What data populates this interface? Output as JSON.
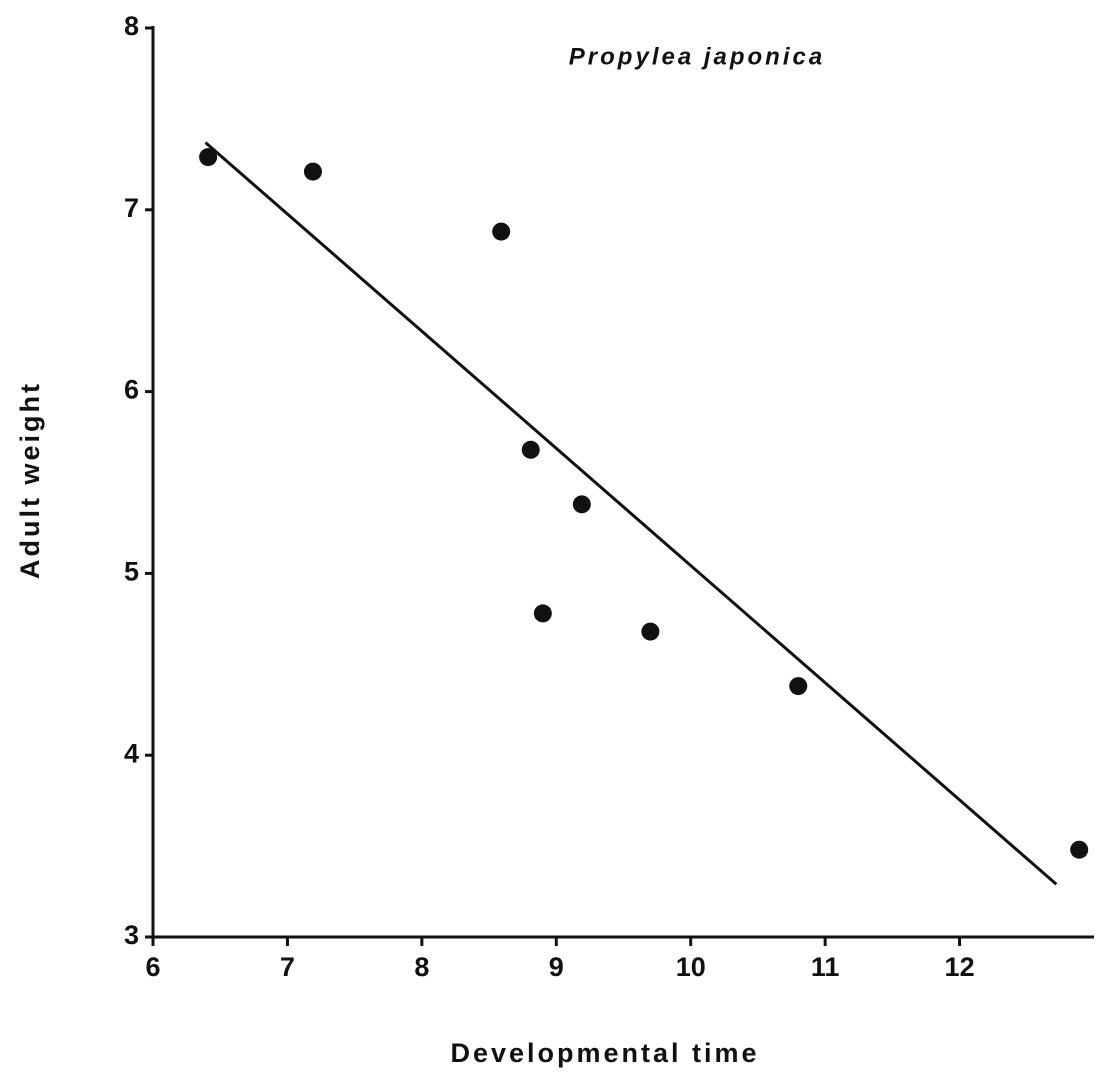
{
  "chart_data": {
    "type": "scatter",
    "title": "Propylea japonica",
    "x_label": "Developmental time",
    "y_label": "Adult weight",
    "x": [
      6.41,
      7.19,
      8.59,
      8.81,
      9.19,
      8.9,
      9.7,
      10.8,
      12.89
    ],
    "values": [
      7.29,
      7.21,
      6.88,
      5.68,
      5.38,
      4.78,
      4.68,
      4.38,
      3.48
    ],
    "color": "#111111",
    "trend_line": {
      "x": [
        6.39,
        12.72
      ],
      "y": [
        7.37,
        3.29
      ]
    },
    "xlim": [
      6,
      13
    ],
    "ylim": [
      3,
      8
    ],
    "xticks": [
      6,
      7,
      8,
      9,
      10,
      11,
      12
    ],
    "yticks": [
      3,
      4,
      5,
      6,
      7,
      8
    ],
    "grid": false
  }
}
